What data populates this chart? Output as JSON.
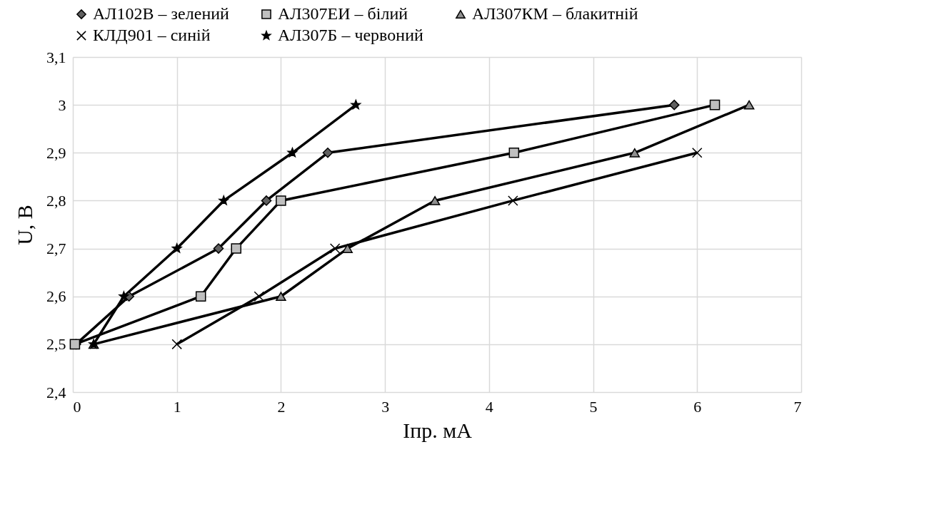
{
  "chart_data": {
    "type": "line",
    "xlabel": "Iпр. мА",
    "ylabel": "U, В",
    "xlim": [
      0,
      7
    ],
    "xticks": [
      0,
      1,
      2,
      3,
      4,
      5,
      6,
      7
    ],
    "ylim": [
      2.4,
      3.1
    ],
    "yticks": [
      {
        "value": 2.4,
        "label": "2,4"
      },
      {
        "value": 2.5,
        "label": "2,5"
      },
      {
        "value": 2.6,
        "label": "2,6"
      },
      {
        "value": 2.7,
        "label": "2,7"
      },
      {
        "value": 2.8,
        "label": "2,8"
      },
      {
        "value": 2.9,
        "label": "2,9"
      },
      {
        "value": 3,
        "label": "3"
      },
      {
        "value": 3.1,
        "label": "3,1"
      }
    ],
    "grid": true,
    "legend": "top",
    "line_style": "solid",
    "series": [
      {
        "name": "АЛ102В – зелений",
        "color": "#606060",
        "marker": "diamond",
        "x": [
          0.03,
          0.54,
          1.4,
          1.86,
          2.45,
          5.78
        ],
        "values": [
          2.5,
          2.6,
          2.7,
          2.8,
          2.9,
          3.0
        ]
      },
      {
        "name": "АЛ307ЕИ – білий",
        "color": "#bfbfbf",
        "marker": "square",
        "x": [
          0.02,
          1.23,
          1.57,
          2.0,
          4.24,
          6.17
        ],
        "values": [
          2.5,
          2.6,
          2.7,
          2.8,
          2.9,
          3.0
        ]
      },
      {
        "name": "АЛ307КМ – блакитній",
        "color": "#909090",
        "marker": "triangle",
        "x": [
          0.2,
          2.0,
          2.64,
          3.48,
          5.4,
          6.5
        ],
        "values": [
          2.5,
          2.6,
          2.7,
          2.8,
          2.9,
          3.0
        ]
      },
      {
        "name": "КЛД901 – синій",
        "color": "#000000",
        "marker": "cross",
        "x": [
          1.0,
          1.79,
          2.52,
          4.23,
          6.0
        ],
        "values": [
          2.5,
          2.6,
          2.7,
          2.8,
          2.9
        ]
      },
      {
        "name": "АЛ307Б – червоний",
        "color": "#000000",
        "marker": "star",
        "x": [
          0.2,
          0.49,
          1.0,
          1.45,
          2.11,
          2.72
        ],
        "values": [
          2.5,
          2.6,
          2.7,
          2.8,
          2.9,
          3.0
        ]
      }
    ]
  }
}
